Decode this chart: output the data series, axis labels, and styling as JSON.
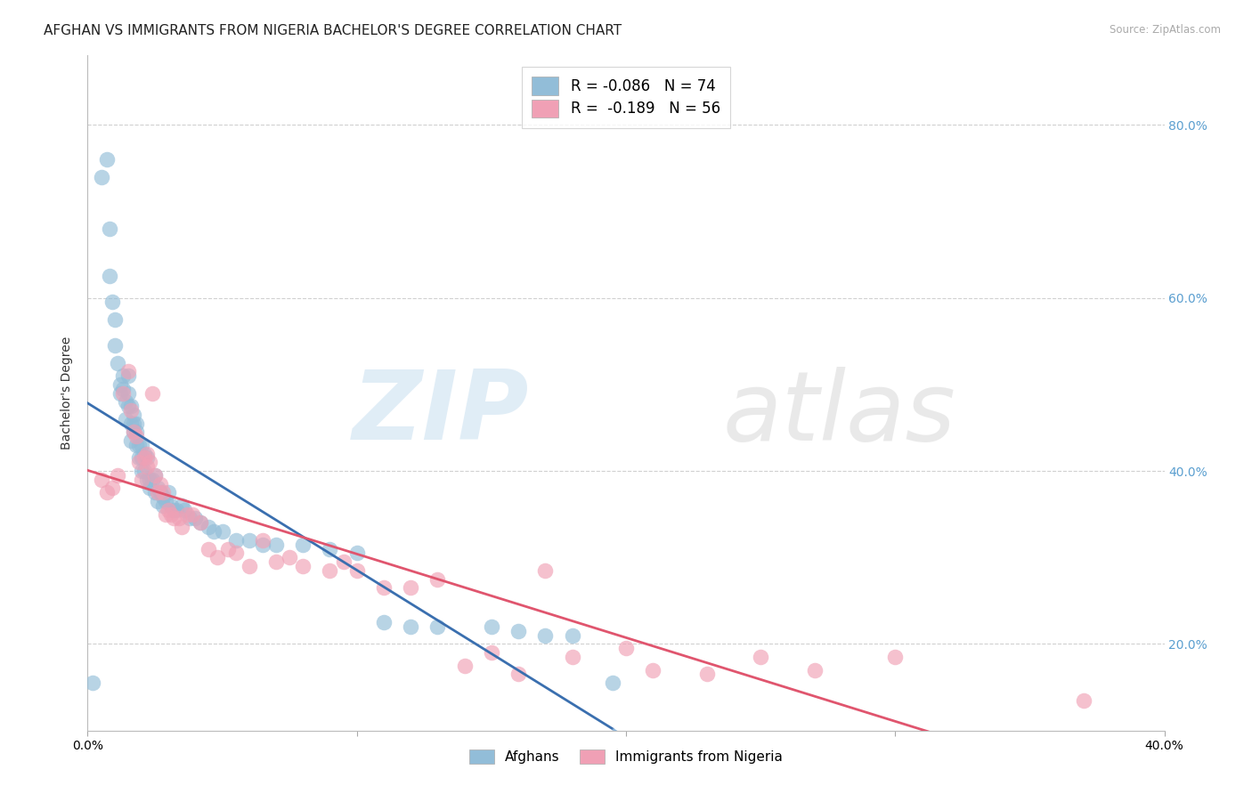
{
  "title": "AFGHAN VS IMMIGRANTS FROM NIGERIA BACHELOR'S DEGREE CORRELATION CHART",
  "source": "Source: ZipAtlas.com",
  "ylabel": "Bachelor's Degree",
  "xlim": [
    0.0,
    0.4
  ],
  "ylim": [
    0.1,
    0.88
  ],
  "R_afghan": -0.086,
  "N_afghan": 74,
  "R_nigeria": -0.189,
  "N_nigeria": 56,
  "afghan_color": "#92bdd8",
  "nigeria_color": "#f0a0b5",
  "afghan_line_color": "#3a6faf",
  "nigeria_line_color": "#e0556e",
  "dashed_line_color": "#7aaad5",
  "right_tick_color": "#5b9fd0",
  "yticks_right": [
    0.2,
    0.4,
    0.6,
    0.8
  ],
  "ytick_labels_right": [
    "20.0%",
    "40.0%",
    "60.0%",
    "80.0%"
  ],
  "xtick_positions": [
    0.0,
    0.1,
    0.2,
    0.3,
    0.4
  ],
  "xtick_labels": [
    "0.0%",
    "",
    "",
    "",
    "40.0%"
  ],
  "grid_color": "#d0d0d0",
  "bg_color": "#ffffff",
  "title_fontsize": 11,
  "axis_label_fontsize": 10,
  "tick_fontsize": 10,
  "legend_labels": [
    "Afghans",
    "Immigrants from Nigeria"
  ],
  "afghan_x": [
    0.002,
    0.005,
    0.007,
    0.008,
    0.008,
    0.009,
    0.01,
    0.01,
    0.011,
    0.012,
    0.012,
    0.013,
    0.013,
    0.014,
    0.014,
    0.015,
    0.015,
    0.015,
    0.016,
    0.016,
    0.016,
    0.017,
    0.017,
    0.017,
    0.018,
    0.018,
    0.018,
    0.019,
    0.019,
    0.02,
    0.02,
    0.02,
    0.021,
    0.021,
    0.022,
    0.022,
    0.023,
    0.023,
    0.024,
    0.025,
    0.025,
    0.026,
    0.026,
    0.027,
    0.028,
    0.028,
    0.029,
    0.03,
    0.031,
    0.032,
    0.033,
    0.035,
    0.036,
    0.038,
    0.04,
    0.042,
    0.045,
    0.047,
    0.05,
    0.055,
    0.06,
    0.065,
    0.07,
    0.08,
    0.09,
    0.1,
    0.11,
    0.12,
    0.13,
    0.15,
    0.16,
    0.17,
    0.18,
    0.195
  ],
  "afghan_y": [
    0.155,
    0.74,
    0.76,
    0.68,
    0.625,
    0.595,
    0.575,
    0.545,
    0.525,
    0.5,
    0.49,
    0.495,
    0.51,
    0.48,
    0.46,
    0.51,
    0.49,
    0.475,
    0.475,
    0.455,
    0.435,
    0.465,
    0.455,
    0.445,
    0.445,
    0.455,
    0.43,
    0.43,
    0.415,
    0.43,
    0.415,
    0.4,
    0.42,
    0.4,
    0.415,
    0.39,
    0.39,
    0.38,
    0.39,
    0.395,
    0.375,
    0.38,
    0.365,
    0.375,
    0.37,
    0.36,
    0.365,
    0.375,
    0.36,
    0.355,
    0.355,
    0.36,
    0.355,
    0.345,
    0.345,
    0.34,
    0.335,
    0.33,
    0.33,
    0.32,
    0.32,
    0.315,
    0.315,
    0.315,
    0.31,
    0.305,
    0.225,
    0.22,
    0.22,
    0.22,
    0.215,
    0.21,
    0.21,
    0.155
  ],
  "nigeria_x": [
    0.005,
    0.007,
    0.009,
    0.011,
    0.013,
    0.015,
    0.016,
    0.017,
    0.018,
    0.019,
    0.02,
    0.021,
    0.022,
    0.022,
    0.023,
    0.024,
    0.025,
    0.026,
    0.027,
    0.028,
    0.029,
    0.03,
    0.031,
    0.032,
    0.034,
    0.035,
    0.037,
    0.039,
    0.042,
    0.045,
    0.048,
    0.052,
    0.055,
    0.06,
    0.065,
    0.07,
    0.075,
    0.08,
    0.09,
    0.095,
    0.1,
    0.11,
    0.12,
    0.13,
    0.14,
    0.15,
    0.16,
    0.17,
    0.18,
    0.2,
    0.21,
    0.23,
    0.25,
    0.27,
    0.3,
    0.37
  ],
  "nigeria_y": [
    0.39,
    0.375,
    0.38,
    0.395,
    0.49,
    0.515,
    0.47,
    0.445,
    0.44,
    0.41,
    0.39,
    0.415,
    0.42,
    0.405,
    0.41,
    0.49,
    0.395,
    0.375,
    0.385,
    0.375,
    0.35,
    0.355,
    0.35,
    0.345,
    0.345,
    0.335,
    0.35,
    0.35,
    0.34,
    0.31,
    0.3,
    0.31,
    0.305,
    0.29,
    0.32,
    0.295,
    0.3,
    0.29,
    0.285,
    0.295,
    0.285,
    0.265,
    0.265,
    0.275,
    0.175,
    0.19,
    0.165,
    0.285,
    0.185,
    0.195,
    0.17,
    0.165,
    0.185,
    0.17,
    0.185,
    0.135
  ]
}
